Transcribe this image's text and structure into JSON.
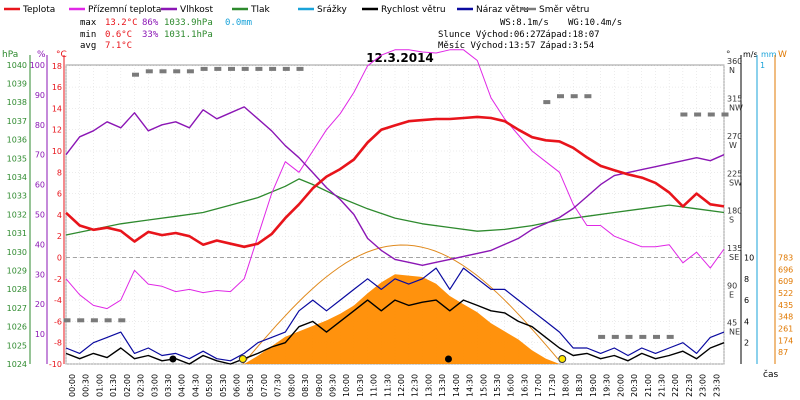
{
  "chart_data": {
    "type": "line",
    "title": "12.3.2014",
    "legend": [
      {
        "name": "Teplota",
        "color": "#e8141b"
      },
      {
        "name": "Přízemní teplota",
        "color": "#e028e6"
      },
      {
        "name": "Vlhkost",
        "color": "#8b16b5"
      },
      {
        "name": "Tlak",
        "color": "#2e8a2e"
      },
      {
        "name": "Srážky",
        "color": "#1aa3d9"
      },
      {
        "name": "Rychlost větru",
        "color": "#000000"
      },
      {
        "name": "Náraz větru",
        "color": "#0a0aa0"
      },
      {
        "name": "Směr větru",
        "color": "#7a7a7a"
      }
    ],
    "stats": {
      "max": {
        "label": "max",
        "temp": "13.2°C",
        "hum": "86%",
        "press": "1033.9hPa",
        "rain": "0.0mm"
      },
      "min": {
        "label": "min",
        "temp": "0.6°C",
        "hum": "33%",
        "press": "1031.1hPa"
      },
      "avg": {
        "label": "avg",
        "temp": "7.1°C"
      }
    },
    "info": {
      "ws": "WS:8.1m/s",
      "wg": "WG:10.4m/s",
      "sun": "Slunce Východ:06:27",
      "sun_set": "Západ:18:07",
      "moon": "Měsíc  Východ:13:57",
      "moon_set": "Západ:3:54"
    },
    "axes": {
      "hpa": {
        "label": "hPa",
        "ticks": [
          "1040",
          "1039",
          "1038",
          "1037",
          "1036",
          "1035",
          "1034",
          "1033",
          "1032",
          "1031",
          "1030",
          "1029",
          "1028",
          "1027",
          "1026",
          "1025",
          "1024"
        ],
        "color": "#2e8a2e"
      },
      "pct": {
        "label": "%",
        "ticks": [
          "100",
          "90",
          "80",
          "70",
          "60",
          "50",
          "40",
          "30",
          "20",
          "10"
        ],
        "color": "#8b16b5"
      },
      "degc": {
        "label": "°C",
        "ticks": [
          "18",
          "16",
          "14",
          "12",
          "10",
          "8",
          "6",
          "4",
          "2",
          "0",
          "-2",
          "-4",
          "-6",
          "-8",
          "-10"
        ],
        "color": "#e8141b"
      },
      "dir": {
        "label": "°",
        "ticks": [
          "360",
          "315",
          "270",
          "225",
          "180",
          "135",
          "90",
          "45"
        ],
        "names": [
          "N",
          "NW",
          "W",
          "SW",
          "S",
          "SE",
          "E",
          "NE"
        ]
      },
      "ms": {
        "label": "m/s",
        "ticks": [
          "10",
          "8",
          "6",
          "4",
          "2"
        ],
        "color": "#000000"
      },
      "mm": {
        "label": "mm",
        "ticks": [
          "1"
        ],
        "color": "#1aa3d9"
      },
      "wm2": {
        "label": "W",
        "ticks": [
          "783",
          "696",
          "609",
          "522",
          "435",
          "348",
          "261",
          "174",
          "87"
        ],
        "color": "#e07800"
      },
      "x_label": "čas",
      "x_ticks": [
        "00:00",
        "00:30",
        "01:00",
        "01:30",
        "02:00",
        "02:30",
        "03:00",
        "03:30",
        "04:00",
        "04:30",
        "05:00",
        "05:30",
        "06:00",
        "06:30",
        "07:00",
        "07:30",
        "08:00",
        "08:30",
        "09:00",
        "09:30",
        "10:00",
        "10:30",
        "11:00",
        "11:30",
        "12:00",
        "12:30",
        "13:00",
        "13:30",
        "14:00",
        "14:30",
        "15:00",
        "15:30",
        "16:00",
        "16:30",
        "17:00",
        "17:30",
        "18:00",
        "18:30",
        "19:00",
        "19:30",
        "20:00",
        "20:30",
        "21:00",
        "21:30",
        "22:00",
        "22:30",
        "23:00",
        "23:30"
      ]
    },
    "series": [
      {
        "name": "Teplota",
        "color": "#e8141b",
        "unit": "°C",
        "hours": [
          0,
          0.5,
          1,
          1.5,
          2,
          2.5,
          3,
          3.5,
          4,
          4.5,
          5,
          5.5,
          6,
          6.5,
          7,
          7.5,
          8,
          8.5,
          9,
          9.5,
          10,
          10.5,
          11,
          11.5,
          12,
          12.5,
          13,
          13.5,
          14,
          14.5,
          15,
          15.5,
          16,
          16.5,
          17,
          17.5,
          18,
          18.5,
          19,
          19.5,
          20,
          20.5,
          21,
          21.5,
          22,
          22.5,
          23,
          23.5,
          24
        ],
        "values": [
          4.2,
          3.0,
          2.6,
          2.8,
          2.5,
          1.5,
          2.4,
          2.1,
          2.3,
          2.0,
          1.2,
          1.6,
          1.3,
          1.0,
          1.3,
          2.2,
          3.7,
          5.0,
          6.5,
          7.6,
          8.3,
          9.2,
          10.8,
          12.0,
          12.4,
          12.8,
          12.9,
          13.0,
          13.0,
          13.1,
          13.2,
          13.1,
          12.8,
          12.0,
          11.3,
          11.0,
          10.9,
          10.3,
          9.4,
          8.6,
          8.2,
          7.8,
          7.5,
          7.0,
          6.1,
          4.8,
          6.0,
          5.0,
          4.8
        ]
      },
      {
        "name": "Přízemní teplota",
        "color": "#e028e6",
        "unit": "°C",
        "hours": [
          0,
          0.5,
          1,
          1.5,
          2,
          2.5,
          3,
          3.5,
          4,
          4.5,
          5,
          5.5,
          6,
          6.5,
          7,
          7.5,
          8,
          8.5,
          9,
          9.5,
          10,
          10.5,
          11,
          11.5,
          12,
          12.5,
          13,
          13.5,
          14,
          14.5,
          15,
          15.5,
          16,
          16.5,
          17,
          17.5,
          18,
          18.5,
          19,
          19.5,
          20,
          20.5,
          21,
          21.5,
          22,
          22.5,
          23,
          23.5,
          24
        ],
        "values": [
          -2.0,
          -3.5,
          -4.5,
          -4.8,
          -4.0,
          -1.2,
          -2.5,
          -2.7,
          -3.2,
          -3.0,
          -3.3,
          -3.1,
          -3.2,
          -2.0,
          2.0,
          6.0,
          9.0,
          8.0,
          10.0,
          12.0,
          13.5,
          15.5,
          18.0,
          19.0,
          19.5,
          19.5,
          19.3,
          19.2,
          19.5,
          19.5,
          18.5,
          15.0,
          13.0,
          11.5,
          10.0,
          9.0,
          8.0,
          5.0,
          3.0,
          3.0,
          2.0,
          1.5,
          1.0,
          1.0,
          1.2,
          -0.5,
          0.5,
          -1.0,
          0.8
        ]
      },
      {
        "name": "Vlhkost",
        "color": "#8b16b5",
        "unit": "%",
        "hours": [
          0,
          0.5,
          1,
          1.5,
          2,
          2.5,
          3,
          3.5,
          4,
          4.5,
          5,
          5.5,
          6,
          6.5,
          7,
          7.5,
          8,
          8.5,
          9,
          9.5,
          10,
          10.5,
          11,
          11.5,
          12,
          12.5,
          13,
          13.5,
          14,
          14.5,
          15,
          15.5,
          16,
          16.5,
          17,
          17.5,
          18,
          18.5,
          19,
          19.5,
          20,
          20.5,
          21,
          21.5,
          22,
          22.5,
          23,
          23.5,
          24
        ],
        "values": [
          70,
          76,
          78,
          81,
          79,
          84,
          78,
          80,
          81,
          79,
          85,
          82,
          84,
          86,
          82,
          78,
          73,
          69,
          64,
          59,
          55,
          50,
          42,
          38,
          35,
          34,
          33,
          34,
          35,
          36,
          37,
          38,
          40,
          42,
          45,
          47,
          49,
          52,
          56,
          60,
          63,
          64,
          65,
          66,
          67,
          68,
          69,
          68,
          70
        ]
      },
      {
        "name": "Tlak",
        "color": "#2e8a2e",
        "unit": "hPa",
        "hours": [
          0,
          1,
          2,
          3,
          4,
          5,
          6,
          7,
          8,
          8.5,
          9,
          10,
          11,
          12,
          13,
          14,
          15,
          16,
          17,
          18,
          19,
          20,
          21,
          22,
          23,
          24
        ],
        "values": [
          1030.9,
          1031.2,
          1031.5,
          1031.7,
          1031.9,
          1032.1,
          1032.5,
          1032.9,
          1033.5,
          1033.9,
          1033.6,
          1032.9,
          1032.3,
          1031.8,
          1031.5,
          1031.3,
          1031.1,
          1031.2,
          1031.4,
          1031.7,
          1031.9,
          1032.1,
          1032.3,
          1032.5,
          1032.3,
          1032.1
        ]
      },
      {
        "name": "Rychlost větru",
        "color": "#000000",
        "unit": "m/s",
        "hours": [
          0,
          0.5,
          1,
          1.5,
          2,
          2.5,
          3,
          3.5,
          4,
          4.5,
          5,
          5.5,
          6,
          6.5,
          7,
          7.5,
          8,
          8.5,
          9,
          9.5,
          10,
          10.5,
          11,
          11.5,
          12,
          12.5,
          13,
          13.5,
          14,
          14.5,
          15,
          15.5,
          16,
          16.5,
          17,
          17.5,
          18,
          18.5,
          19,
          19.5,
          20,
          20.5,
          21,
          21.5,
          22,
          22.5,
          23,
          23.5,
          24
        ],
        "values": [
          1.0,
          0.5,
          1.0,
          0.6,
          1.5,
          0.5,
          0.8,
          0.3,
          0.5,
          0.0,
          0.8,
          0.3,
          0.0,
          0.5,
          1.0,
          1.6,
          2.0,
          3.5,
          4.0,
          3.0,
          4.0,
          5.0,
          6.0,
          5.0,
          6.0,
          5.5,
          5.8,
          6.0,
          5.0,
          6.0,
          5.5,
          5.0,
          4.8,
          4.0,
          3.5,
          2.5,
          1.5,
          0.8,
          1.0,
          0.5,
          0.8,
          0.3,
          1.0,
          0.5,
          0.8,
          1.2,
          0.5,
          1.5,
          2.0
        ]
      },
      {
        "name": "Náraz větru",
        "color": "#0a0aa0",
        "unit": "m/s",
        "hours": [
          0,
          0.5,
          1,
          1.5,
          2,
          2.5,
          3,
          3.5,
          4,
          4.5,
          5,
          5.5,
          6,
          6.5,
          7,
          7.5,
          8,
          8.5,
          9,
          9.5,
          10,
          10.5,
          11,
          11.5,
          12,
          12.5,
          13,
          13.5,
          14,
          14.5,
          15,
          15.5,
          16,
          16.5,
          17,
          17.5,
          18,
          18.5,
          19,
          19.5,
          20,
          20.5,
          21,
          21.5,
          22,
          22.5,
          23,
          23.5,
          24
        ],
        "values": [
          1.5,
          1.0,
          2.0,
          2.5,
          3.0,
          1.0,
          1.5,
          0.8,
          1.0,
          0.5,
          1.2,
          0.5,
          0.3,
          1.0,
          2.0,
          2.5,
          3.0,
          5.0,
          6.0,
          5.0,
          6.0,
          7.0,
          8.0,
          7.0,
          8.0,
          7.5,
          8.0,
          9.0,
          7.0,
          9.0,
          8.0,
          7.0,
          7.0,
          6.0,
          5.0,
          4.0,
          3.0,
          1.5,
          1.5,
          1.0,
          1.5,
          0.8,
          1.5,
          1.0,
          1.5,
          2.0,
          1.0,
          2.5,
          3.0
        ]
      },
      {
        "name": "Slunce",
        "color": "#ff8c00",
        "unit": "W/m²",
        "hours": [
          6.5,
          7,
          7.5,
          8,
          8.5,
          9,
          9.5,
          10,
          10.5,
          11,
          11.5,
          12,
          12.5,
          13,
          13.5,
          14,
          14.5,
          15,
          15.5,
          16,
          16.5,
          17,
          17.5,
          18
        ],
        "values": [
          0,
          60,
          130,
          200,
          240,
          280,
          320,
          370,
          430,
          520,
          600,
          660,
          650,
          640,
          590,
          500,
          440,
          380,
          300,
          240,
          180,
          100,
          40,
          0
        ]
      },
      {
        "name": "Směr větru",
        "color": "#7a7a7a",
        "unit": "°",
        "hours": [
          0,
          0.5,
          1,
          1.5,
          2,
          2.5,
          3,
          3.5,
          4,
          4.5,
          5,
          5.5,
          6,
          6.5,
          7,
          7.5,
          8,
          8.5,
          17.5,
          18,
          18.5,
          19,
          19.5,
          20,
          20.5,
          21,
          21.5,
          22,
          22.5,
          23,
          23.5,
          24
        ],
        "values": [
          52,
          52,
          52,
          52,
          52,
          348,
          352,
          352,
          352,
          352,
          355,
          355,
          355,
          355,
          355,
          355,
          355,
          355,
          315,
          322,
          322,
          322,
          32,
          32,
          32,
          32,
          32,
          32,
          300,
          300,
          300,
          300
        ]
      }
    ]
  }
}
